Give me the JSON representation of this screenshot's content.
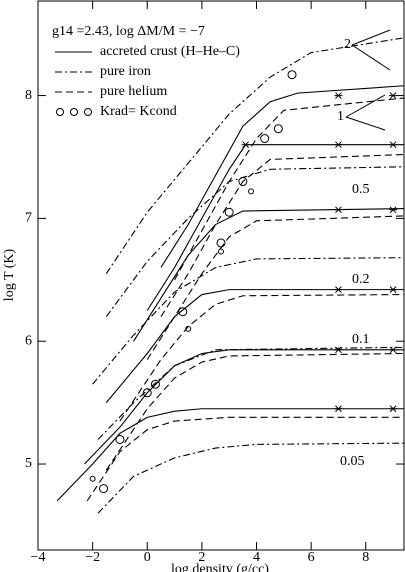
{
  "chart_data": {
    "type": "line",
    "title": "g14 =2.43,  log ΔM/M = −7",
    "x_label": "log density (g/cc)",
    "y_label": "log T (K)",
    "xlim": [
      -4,
      9.4
    ],
    "ylim": [
      4.3,
      8.77
    ],
    "xticks": [
      {
        "value": -4,
        "label": "−4"
      },
      {
        "value": -2,
        "label": "−2"
      },
      0,
      2,
      4,
      6,
      8
    ],
    "yticks": [
      5,
      6,
      7,
      8
    ],
    "color": "#000000",
    "series": [
      {
        "name": "accreted crust (H–He–C)",
        "dash": "solid",
        "lines": [
          {
            "x": [
              -3.3,
              -2,
              -1,
              0,
              1,
              2,
              9.4
            ],
            "values": [
              4.7,
              5.0,
              5.25,
              5.38,
              5.43,
              5.45,
              5.45
            ]
          },
          {
            "x": [
              -2.3,
              -1,
              0,
              1,
              2,
              3,
              9.4
            ],
            "values": [
              5.0,
              5.3,
              5.58,
              5.8,
              5.9,
              5.93,
              5.93
            ]
          },
          {
            "x": [
              -1.5,
              0,
              1,
              2,
              3,
              9.4
            ],
            "values": [
              5.5,
              5.9,
              6.2,
              6.38,
              6.42,
              6.42
            ]
          },
          {
            "x": [
              -0.5,
              0.5,
              1.5,
              2.5,
              3.5,
              9.4
            ],
            "values": [
              6.0,
              6.35,
              6.7,
              6.95,
              7.06,
              7.08
            ]
          },
          {
            "x": [
              0,
              1,
              2,
              3,
              3.6,
              9.4
            ],
            "values": [
              6.25,
              6.6,
              7.0,
              7.4,
              7.6,
              7.6
            ]
          },
          {
            "x": [
              0.5,
              1.5,
              2.5,
              3.5,
              4.5,
              5.5,
              9.4
            ],
            "values": [
              6.6,
              6.95,
              7.35,
              7.75,
              7.95,
              8.02,
              8.08
            ]
          }
        ]
      },
      {
        "name": "pure iron",
        "dash": "dashdot",
        "lines": [
          {
            "x": [
              -1.8,
              -0.5,
              1,
              2.5,
              4,
              9.4
            ],
            "values": [
              4.6,
              4.9,
              5.05,
              5.13,
              5.16,
              5.17
            ]
          },
          {
            "x": [
              -1.8,
              -0.5,
              1,
              2.5,
              9.4
            ],
            "values": [
              5.2,
              5.5,
              5.8,
              5.93,
              5.95
            ]
          },
          {
            "x": [
              -2,
              -0.5,
              1,
              2.5,
              4,
              9.4
            ],
            "values": [
              5.65,
              6.05,
              6.4,
              6.6,
              6.67,
              6.68
            ]
          },
          {
            "x": [
              -1.5,
              0,
              1.5,
              3,
              4.5,
              9.4
            ],
            "values": [
              6.2,
              6.65,
              7.0,
              7.3,
              7.4,
              7.42
            ]
          },
          {
            "x": [
              -1.5,
              0,
              1.5,
              3,
              4.5,
              6,
              9.4
            ],
            "values": [
              6.55,
              7.05,
              7.45,
              7.85,
              8.15,
              8.35,
              8.47
            ]
          }
        ]
      },
      {
        "name": "pure helium",
        "dash": "dashed",
        "lines": [
          {
            "x": [
              -2.2,
              -1,
              0,
              1,
              3,
              9.4
            ],
            "values": [
              4.7,
              5.1,
              5.28,
              5.35,
              5.38,
              5.38
            ]
          },
          {
            "x": [
              -1.5,
              0,
              1,
              2,
              3,
              9.4
            ],
            "values": [
              4.95,
              5.45,
              5.7,
              5.83,
              5.88,
              5.9
            ]
          },
          {
            "x": [
              -1,
              0.5,
              1.5,
              2.5,
              3.5,
              9.4
            ],
            "values": [
              5.35,
              5.85,
              6.12,
              6.3,
              6.37,
              6.38
            ]
          },
          {
            "x": [
              0,
              1,
              2,
              3,
              4,
              9.4
            ],
            "values": [
              5.85,
              6.2,
              6.55,
              6.85,
              6.98,
              7.02
            ]
          },
          {
            "x": [
              0.5,
              1.5,
              2.5,
              3.5,
              4.5,
              9.4
            ],
            "values": [
              6.2,
              6.55,
              6.95,
              7.3,
              7.48,
              7.52
            ]
          },
          {
            "x": [
              1,
              2,
              3,
              4,
              5,
              9.4
            ],
            "values": [
              6.5,
              6.9,
              7.3,
              7.65,
              7.88,
              7.98
            ]
          }
        ]
      },
      {
        "name": "Krad= Kcond",
        "marker": "circle",
        "x": [
          -1.6,
          -1,
          0,
          0.3,
          1.3,
          3,
          3.5,
          4.3,
          5.3,
          2.7,
          4.8,
          -2,
          1.5,
          2.7,
          3.8
        ],
        "values": [
          4.8,
          5.2,
          5.58,
          5.65,
          6.24,
          7.05,
          7.3,
          7.65,
          8.17,
          6.8,
          7.73,
          4.88,
          6.1,
          6.73,
          7.22
        ]
      },
      {
        "marker": "star",
        "x": [
          3.6,
          7,
          9,
          7,
          9,
          7,
          9,
          7,
          9,
          7,
          9,
          7,
          9
        ],
        "values": [
          7.6,
          8.0,
          8.0,
          7.6,
          7.6,
          7.07,
          7.07,
          6.42,
          6.42,
          5.93,
          5.93,
          5.45,
          5.45
        ]
      }
    ],
    "curve_labels": [
      "2",
      "1",
      "0.5",
      "0.2",
      "0.1",
      "0.05"
    ]
  }
}
